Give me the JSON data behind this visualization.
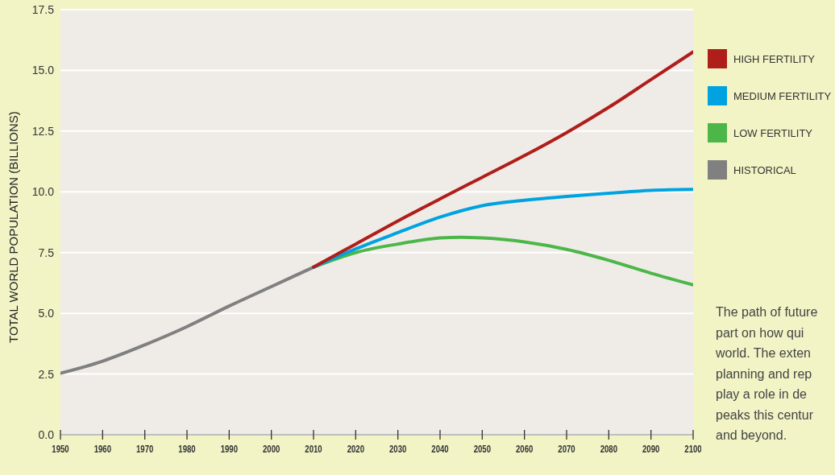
{
  "chart_data": {
    "type": "line",
    "ylabel": "TOTAL WORLD POPULATION (BILLIONS)",
    "series": [
      {
        "name": "HIGH FERTILITY",
        "color": "#b01e1a",
        "x": [
          2010,
          2020,
          2030,
          2040,
          2050,
          2060,
          2070,
          2080,
          2090,
          2100
        ],
        "values": [
          6.9,
          7.85,
          8.8,
          9.71,
          10.6,
          11.49,
          12.44,
          13.48,
          14.62,
          15.76
        ]
      },
      {
        "name": "MEDIUM FERTILITY",
        "color": "#00a3e0",
        "x": [
          2010,
          2020,
          2030,
          2040,
          2050,
          2060,
          2070,
          2080,
          2090,
          2100
        ],
        "values": [
          6.9,
          7.65,
          8.32,
          8.96,
          9.43,
          9.65,
          9.81,
          9.94,
          10.06,
          10.1
        ]
      },
      {
        "name": "LOW FERTILITY",
        "color": "#4cb748",
        "x": [
          2010,
          2020,
          2030,
          2040,
          2045,
          2050,
          2060,
          2070,
          2080,
          2090,
          2100
        ],
        "values": [
          6.9,
          7.5,
          7.85,
          8.1,
          8.13,
          8.1,
          7.94,
          7.63,
          7.18,
          6.65,
          6.17
        ]
      },
      {
        "name": "HISTORICAL",
        "color": "#808080",
        "x": [
          1950,
          1960,
          1970,
          1980,
          1990,
          2000,
          2010
        ],
        "values": [
          2.53,
          3.03,
          3.7,
          4.45,
          5.3,
          6.1,
          6.9
        ]
      }
    ],
    "xlim": [
      1950,
      2100
    ],
    "xticks": [
      1950,
      1960,
      1970,
      1980,
      1990,
      2000,
      2010,
      2020,
      2030,
      2040,
      2050,
      2060,
      2070,
      2080,
      2090,
      2100
    ],
    "ylim": [
      0,
      17.5
    ],
    "yticks": [
      {
        "value": 0,
        "label": "0.0"
      },
      {
        "value": 2.5,
        "label": "2.5"
      },
      {
        "value": 5,
        "label": "5.0"
      },
      {
        "value": 7.5,
        "label": "7.5"
      },
      {
        "value": 10,
        "label": "10.0"
      },
      {
        "value": 12.5,
        "label": "12.5"
      },
      {
        "value": 15,
        "label": "15.0"
      },
      {
        "value": 17.5,
        "label": "17.5"
      }
    ],
    "grid": "y",
    "legend": "top right",
    "marker": "none",
    "line_style": "solid",
    "annotations": [
      "The path of future\npart on how qui\nworld. The exten\nplanning and rep\nplay a role in de\npeaks this centur\nand beyond."
    ]
  }
}
